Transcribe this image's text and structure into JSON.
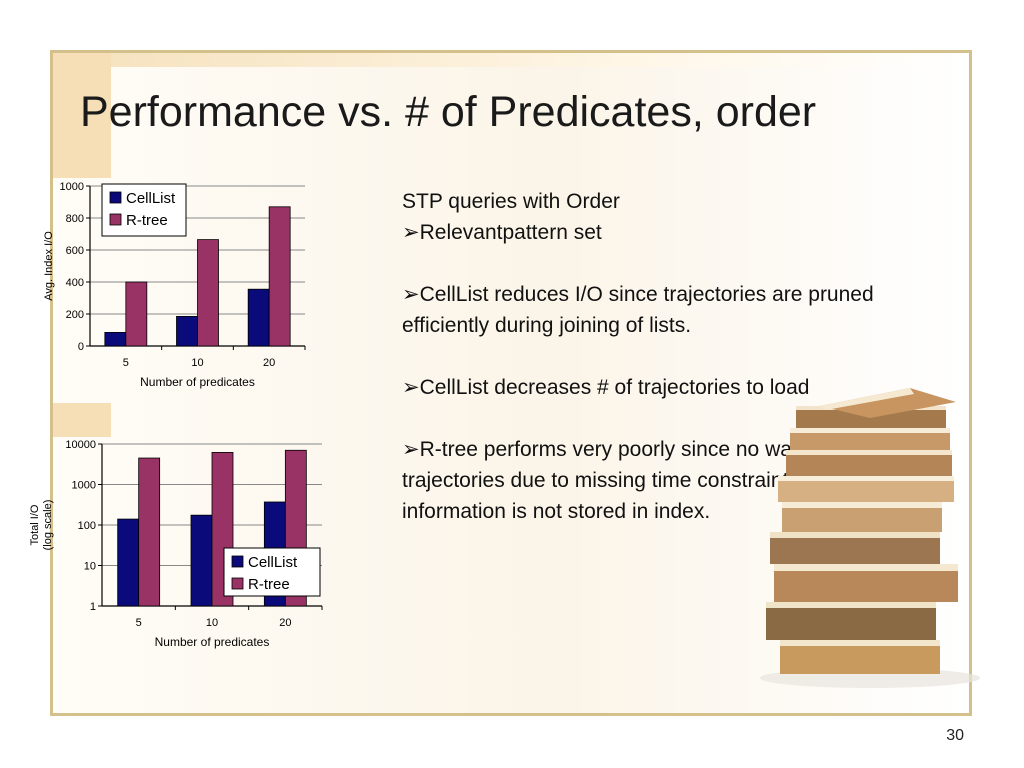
{
  "slide": {
    "title": "Performance vs. # of Predicates, order",
    "page_number": "30"
  },
  "text": {
    "heading": "STP queries with Order",
    "bullet_marker": "➢",
    "bullets": [
      "Relevantpattern set",
      "CellList reduces I/O since trajectories are pruned efficiently during joining of lists.",
      "CellList decreases # of trajectories to load",
      "R-tree performs very poorly since no way to prune trajectories due to missing time constraint and order information is not stored in index."
    ]
  },
  "colors": {
    "celllist": "#0a0a7a",
    "rtree": "#993366",
    "frame": "#d4c08a",
    "accent": "#f6dfb6"
  },
  "chart_data": [
    {
      "type": "bar",
      "categories": [
        "5",
        "10",
        "20"
      ],
      "series": [
        {
          "name": "CellList",
          "values": [
            85,
            185,
            355
          ]
        },
        {
          "name": "R-tree",
          "values": [
            400,
            665,
            870
          ]
        }
      ],
      "ylabel": "Avg. Index I/O",
      "xlabel": "Number of predicates",
      "ylim": [
        0,
        1000
      ],
      "yticks": [
        "0",
        "200",
        "400",
        "600",
        "800",
        "1000"
      ],
      "scale": "linear",
      "legend": "top-left",
      "grid": true
    },
    {
      "type": "bar",
      "categories": [
        "5",
        "10",
        "20"
      ],
      "series": [
        {
          "name": "CellList",
          "values": [
            140,
            175,
            370
          ]
        },
        {
          "name": "R-tree",
          "values": [
            4500,
            6200,
            7000
          ]
        }
      ],
      "ylabel": "Total I/O (log scale)",
      "xlabel": "Number of predicates",
      "ylim": [
        1,
        10000
      ],
      "yticks": [
        "1",
        "10",
        "100",
        "1000",
        "10000"
      ],
      "scale": "log",
      "legend": "bottom-right",
      "grid": true
    }
  ]
}
